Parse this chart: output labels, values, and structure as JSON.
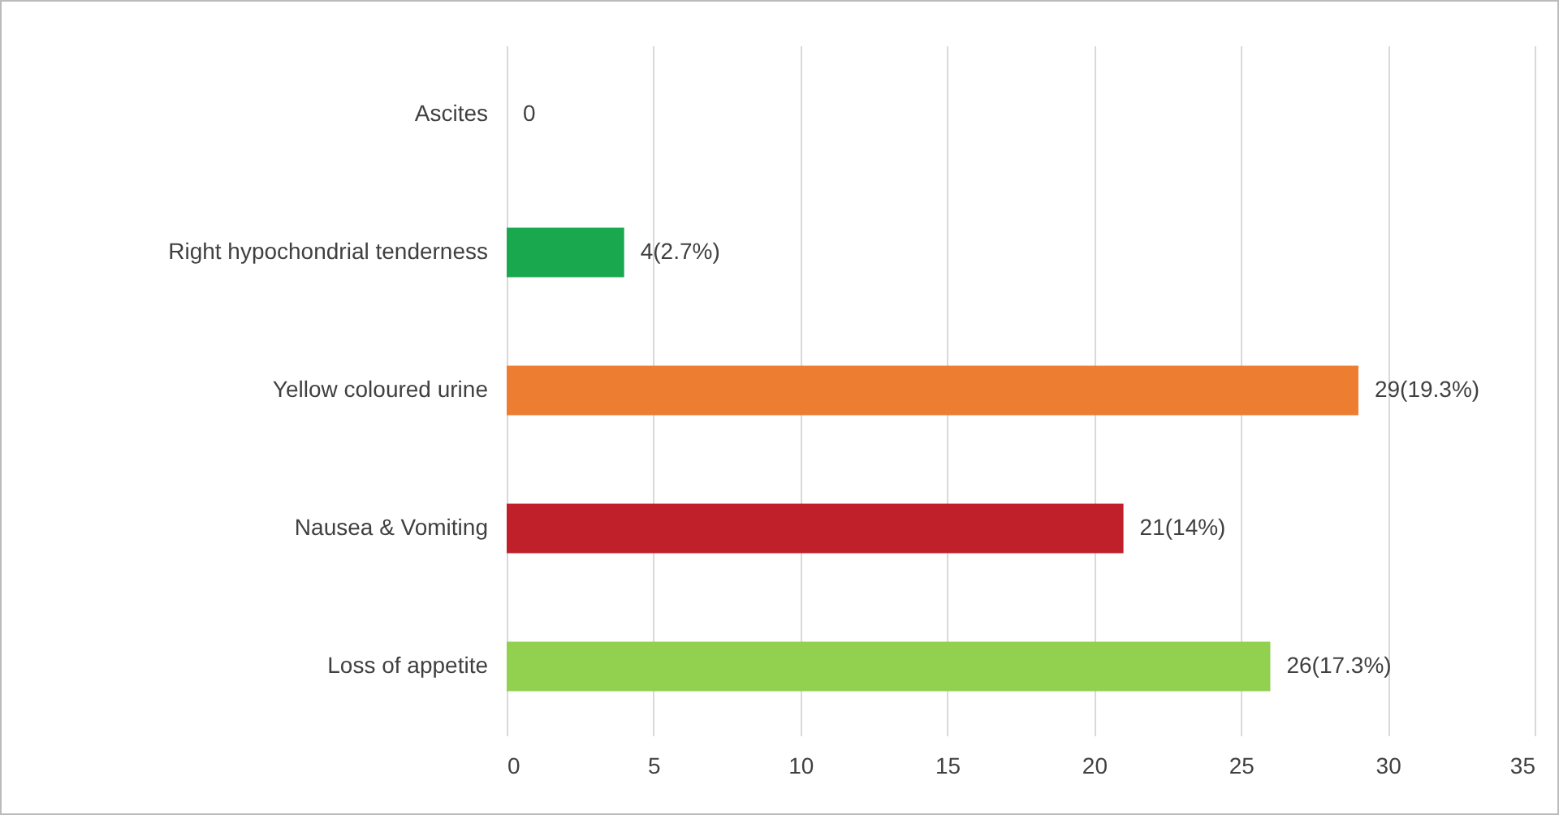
{
  "chart_data": {
    "type": "bar",
    "orientation": "horizontal",
    "categories": [
      "Ascites",
      "Right hypochondrial tenderness",
      "Yellow coloured urine",
      "Nausea & Vomiting",
      "Loss of appetite"
    ],
    "values": [
      0,
      4,
      29,
      21,
      26
    ],
    "colors": [
      "#a5a5a5",
      "#1aa84f",
      "#ed7d31",
      "#c0202a",
      "#92d050"
    ],
    "value_labels": [
      "0",
      "4(2.7%)",
      "29(19.3%)",
      "21(14%)",
      "26(17.3%)"
    ],
    "xlim": [
      0,
      35
    ],
    "xticks": [
      0,
      5,
      10,
      15,
      20,
      25,
      30,
      35
    ],
    "grid": "x"
  }
}
